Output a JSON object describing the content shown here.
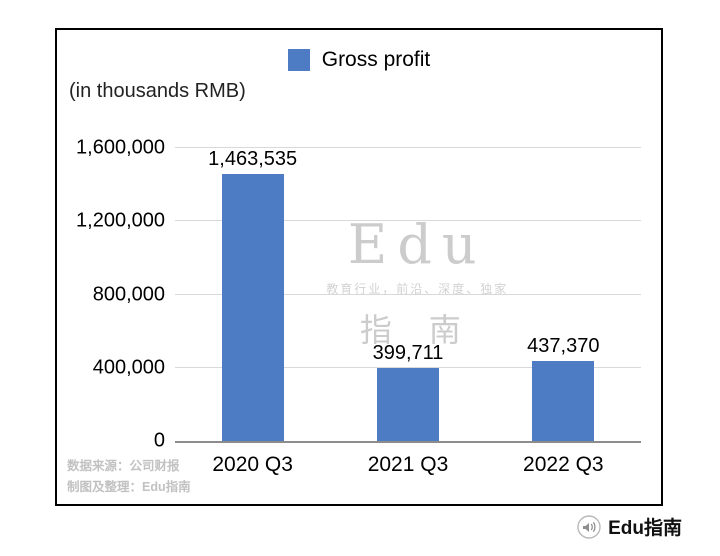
{
  "chart_data": {
    "type": "bar",
    "legend": "Gross profit",
    "units_label": "(in thousands RMB)",
    "categories": [
      "2020 Q3",
      "2021 Q3",
      "2022 Q3"
    ],
    "values": [
      1463535,
      399711,
      437370
    ],
    "value_labels": [
      "1,463,535",
      "399,711",
      "437,370"
    ],
    "ylim": [
      0,
      1600000
    ],
    "yticks": [
      {
        "value": 0,
        "label": "0"
      },
      {
        "value": 400000,
        "label": "400,000"
      },
      {
        "value": 800000,
        "label": "800,000"
      },
      {
        "value": 1200000,
        "label": "1,200,000"
      },
      {
        "value": 1600000,
        "label": "1,600,000"
      }
    ],
    "bar_color": "#4E7CC4",
    "grid": true,
    "legend_position": "top"
  },
  "watermark": {
    "line1": "Edu",
    "line2": "教育行业，前沿、深度、独家",
    "line3": "指 南"
  },
  "footnotes": {
    "source": "数据来源：公司财报",
    "credit": "制图及整理：Edu指南"
  },
  "brand": {
    "icon": "megaphone-icon",
    "name": "Edu指南"
  }
}
